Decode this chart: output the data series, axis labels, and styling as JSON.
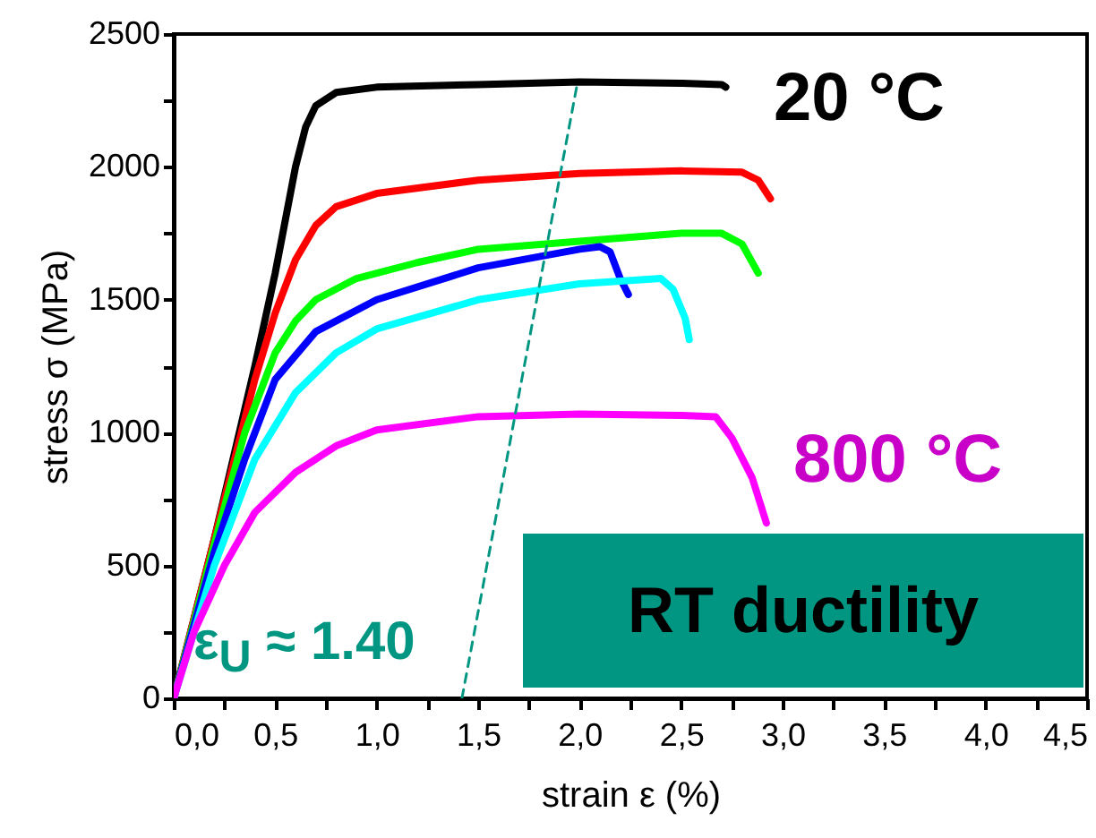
{
  "chart_data": {
    "type": "line",
    "xlabel": "strain ε (%)",
    "ylabel": "stress σ (MPa)",
    "xlim": [
      0,
      4.5
    ],
    "ylim": [
      0,
      2500
    ],
    "xticks": [
      {
        "value": 0,
        "label": "0,0"
      },
      {
        "value": 0.25,
        "label": null
      },
      {
        "value": 0.5,
        "label": "0,5"
      },
      {
        "value": 0.75,
        "label": null
      },
      {
        "value": 1,
        "label": "1,0"
      },
      {
        "value": 1.25,
        "label": null
      },
      {
        "value": 1.5,
        "label": "1,5"
      },
      {
        "value": 1.75,
        "label": null
      },
      {
        "value": 2,
        "label": "2,0"
      },
      {
        "value": 2.25,
        "label": null
      },
      {
        "value": 2.5,
        "label": "2,5"
      },
      {
        "value": 2.75,
        "label": null
      },
      {
        "value": 3,
        "label": "3,0"
      },
      {
        "value": 3.25,
        "label": null
      },
      {
        "value": 3.5,
        "label": "3,5"
      },
      {
        "value": 3.75,
        "label": null
      },
      {
        "value": 4,
        "label": "4,0"
      },
      {
        "value": 4.25,
        "label": null
      },
      {
        "value": 4.5,
        "label": "4,5"
      }
    ],
    "yticks": [
      0,
      {
        "value": 250,
        "label": null
      },
      500,
      {
        "value": 750,
        "label": null
      },
      1000,
      {
        "value": 1250,
        "label": null
      },
      1500,
      {
        "value": 1750,
        "label": null
      },
      2000,
      {
        "value": 2250,
        "label": null
      },
      2500
    ],
    "grid": false,
    "line_style": "solid",
    "annotations": [
      "20 °C",
      "800 °C",
      "RT ductility",
      "ε$_{U}$ ≈ 1.40"
    ],
    "series": [
      {
        "color": "#000000",
        "x": [
          0,
          0.2,
          0.4,
          0.5,
          0.55,
          0.6,
          0.65,
          0.7,
          0.8,
          1.0,
          1.5,
          2.0,
          2.5,
          2.7,
          2.72
        ],
        "values": [
          0,
          600,
          1250,
          1600,
          1800,
          2000,
          2150,
          2230,
          2280,
          2300,
          2310,
          2320,
          2315,
          2310,
          2300
        ]
      },
      {
        "color": "#ff0000",
        "x": [
          0,
          0.2,
          0.4,
          0.5,
          0.6,
          0.7,
          0.8,
          1.0,
          1.5,
          2.0,
          2.5,
          2.8,
          2.88,
          2.94
        ],
        "values": [
          0,
          600,
          1200,
          1450,
          1650,
          1780,
          1850,
          1900,
          1950,
          1975,
          1985,
          1980,
          1950,
          1880
        ]
      },
      {
        "color": "#00ff00",
        "x": [
          0,
          0.2,
          0.35,
          0.5,
          0.6,
          0.7,
          0.9,
          1.2,
          1.5,
          2.0,
          2.5,
          2.7,
          2.8,
          2.88
        ],
        "values": [
          0,
          580,
          1000,
          1300,
          1420,
          1500,
          1580,
          1640,
          1690,
          1720,
          1750,
          1750,
          1710,
          1600
        ]
      },
      {
        "color": "#0000ff",
        "x": [
          0,
          0.2,
          0.35,
          0.5,
          0.7,
          1.0,
          1.5,
          2.0,
          2.1,
          2.15,
          2.2,
          2.24
        ],
        "values": [
          0,
          550,
          900,
          1200,
          1380,
          1500,
          1620,
          1690,
          1700,
          1680,
          1580,
          1520
        ]
      },
      {
        "color": "#00ffff",
        "x": [
          0,
          0.2,
          0.4,
          0.6,
          0.8,
          1.0,
          1.5,
          2.0,
          2.4,
          2.46,
          2.52,
          2.54
        ],
        "values": [
          0,
          500,
          900,
          1150,
          1300,
          1390,
          1500,
          1560,
          1580,
          1540,
          1430,
          1350
        ]
      },
      {
        "color": "#ff00ff",
        "x": [
          0,
          0.1,
          0.25,
          0.4,
          0.6,
          0.8,
          1.0,
          1.5,
          2.0,
          2.5,
          2.67,
          2.75,
          2.85,
          2.92
        ],
        "values": [
          0,
          250,
          500,
          700,
          850,
          950,
          1010,
          1060,
          1070,
          1065,
          1060,
          980,
          830,
          660
        ]
      },
      {
        "color": "#009682",
        "line_style": "dashed",
        "x": [
          1.42,
          1.99
        ],
        "values": [
          0,
          2320
        ]
      }
    ]
  }
}
